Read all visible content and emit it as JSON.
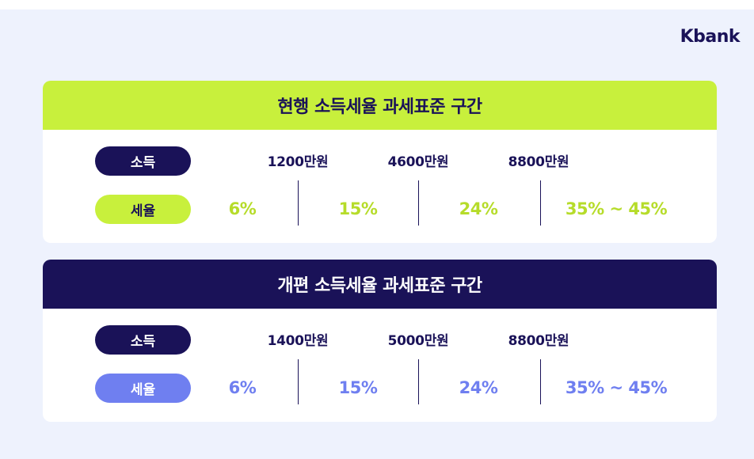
{
  "brand": {
    "logo_text": "Kbank"
  },
  "current": {
    "title": "현행 소득세율 과세표준 구간",
    "income_label": "소득",
    "tax_label": "세율",
    "thresholds": [
      "1200만원",
      "4600만원",
      "8800만원"
    ],
    "rates": [
      "6%",
      "15%",
      "24%",
      "35% ~ 45%"
    ]
  },
  "revised": {
    "title": "개편 소득세율 과세표준 구간",
    "income_label": "소득",
    "tax_label": "세율",
    "thresholds": [
      "1400만원",
      "5000만원",
      "8800만원"
    ],
    "rates": [
      "6%",
      "15%",
      "24%",
      "35% ~ 45%"
    ]
  },
  "colors": {
    "navy": "#1a1258",
    "lime": "#c8f03c",
    "periwinkle": "#6f7ff0",
    "background": "#eef2fd"
  }
}
